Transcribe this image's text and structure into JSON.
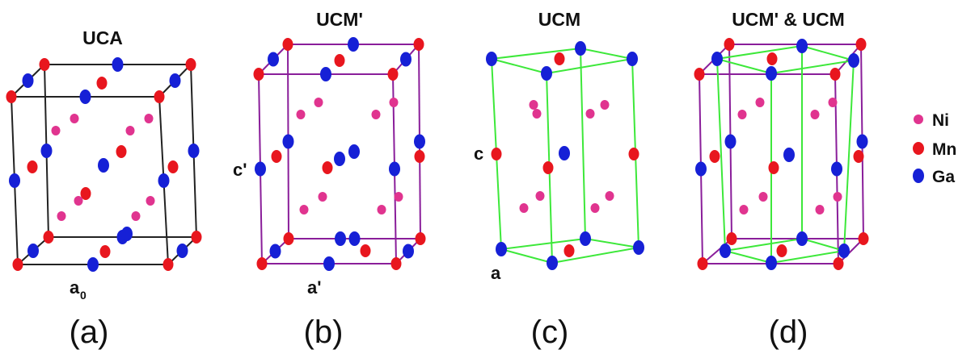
{
  "colors": {
    "ni": "#e0348f",
    "mn": "#e8161e",
    "ga": "#1620d6",
    "uca_edge": "#222222",
    "ucm_prime_edge": "#8a1e9a",
    "ucm_edge": "#3de83a"
  },
  "panels": [
    {
      "id": "a",
      "title": "UCA",
      "label": "(a)",
      "axis_main": "a",
      "axis_sub": "0"
    },
    {
      "id": "b",
      "title": "UCM'",
      "label": "(b)",
      "axis_side": "c'",
      "axis_main": "a'"
    },
    {
      "id": "c",
      "title": "UCM",
      "label": "(c)",
      "axis_side": "c",
      "axis_main": "a"
    },
    {
      "id": "d",
      "title": "UCM' & UCM",
      "label": "(d)"
    }
  ],
  "legend": [
    {
      "label": "Ni",
      "color": "#e0348f"
    },
    {
      "label": "Mn",
      "color": "#e8161e"
    },
    {
      "label": "Ga",
      "color": "#1620d6"
    }
  ]
}
